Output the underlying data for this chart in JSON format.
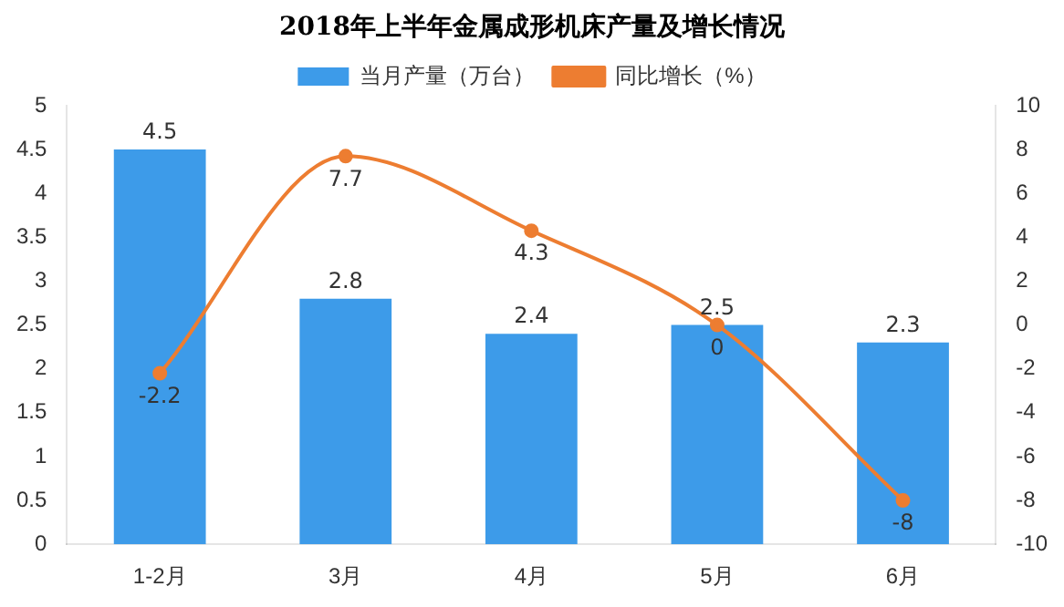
{
  "chart_data": {
    "type": "bar",
    "title": "2018年上半年金属成形机床产量及增长情况",
    "categories": [
      "1-2月",
      "3月",
      "4月",
      "5月",
      "6月"
    ],
    "series": [
      {
        "name": "当月产量（万台）",
        "color": "#3d9be9",
        "values": [
          4.5,
          2.8,
          2.4,
          2.5,
          2.3
        ]
      },
      {
        "name": "同比增长（%）",
        "type": "line",
        "axis": "y2",
        "color": "#ed7d31",
        "values": [
          -2.2,
          7.7,
          4.3,
          0,
          -8
        ],
        "marker": "circle"
      }
    ],
    "ylim": [
      0,
      5
    ],
    "yticks": [
      0,
      0.5,
      1,
      1.5,
      2,
      2.5,
      3,
      3.5,
      4,
      4.5,
      5
    ],
    "y2lim": [
      -10,
      10
    ],
    "y2ticks": [
      -10,
      -8,
      -6,
      -4,
      -2,
      0,
      2,
      4,
      6,
      8,
      10
    ],
    "grid": false,
    "legend": "top",
    "data_labels": true
  }
}
